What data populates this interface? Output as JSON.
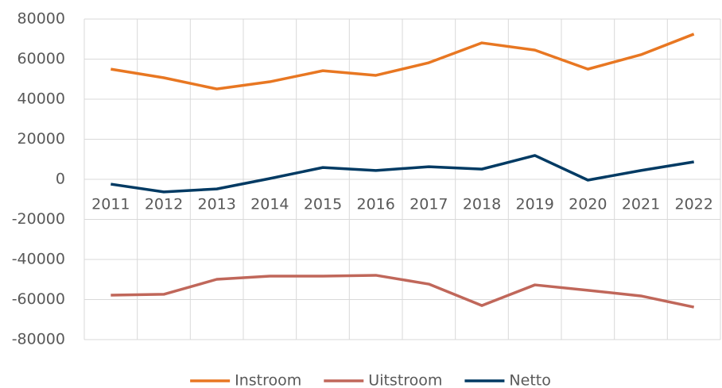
{
  "chart_data": {
    "type": "line",
    "categories": [
      "2011",
      "2012",
      "2013",
      "2014",
      "2015",
      "2016",
      "2017",
      "2018",
      "2019",
      "2020",
      "2021",
      "2022"
    ],
    "series": [
      {
        "name": "Instroom",
        "color": "#e87722",
        "values": [
          55000,
          50700,
          45100,
          48700,
          54200,
          51900,
          58200,
          68100,
          64500,
          55000,
          62200,
          72500
        ]
      },
      {
        "name": "Uitstroom",
        "color": "#c0675a",
        "values": [
          -57800,
          -57400,
          -49900,
          -48300,
          -48300,
          -47900,
          -52300,
          -63000,
          -52700,
          -55400,
          -58200,
          -63800
        ]
      },
      {
        "name": "Netto",
        "color": "#003a63",
        "values": [
          -2400,
          -6300,
          -4800,
          400,
          5900,
          4400,
          6300,
          5100,
          11900,
          -400,
          4400,
          8700
        ]
      }
    ],
    "ylim": [
      -80000,
      80000
    ],
    "yticks": [
      -80000,
      -60000,
      -40000,
      -20000,
      0,
      20000,
      40000,
      60000,
      80000
    ],
    "grid": true,
    "legend": "bottom"
  }
}
